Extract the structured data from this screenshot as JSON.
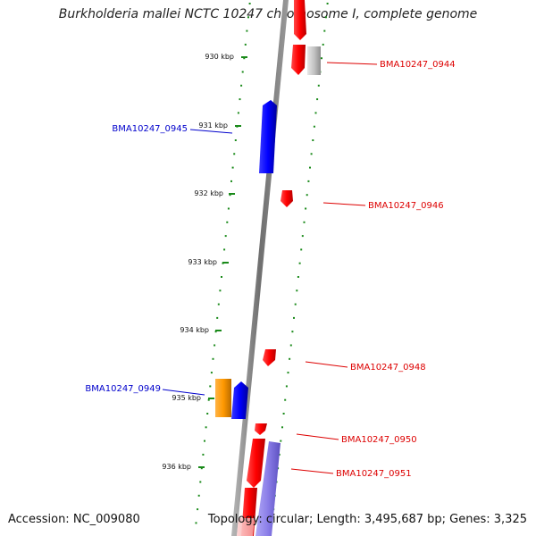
{
  "title": "Burkholderia mallei NCTC 10247 chromosome I, complete genome",
  "accession": "Accession: NC_009080",
  "topology": "Topology: circular; Length: 3,495,687 bp; Genes: 3,325",
  "colors": {
    "forward_gene": "#ff0000",
    "reverse_gene": "#0000ff",
    "pseudo_gene": "#bbbbbb",
    "orange_gene": "#ff9900",
    "lavender_gene": "#8a7de8",
    "kbp_ticks": "#1a8a1a",
    "forward_label": "#dd0000",
    "reverse_label": "#0000cc",
    "axis": "#8c8c8c"
  },
  "kbp_ticks": [
    "930 kbp",
    "931 kbp",
    "932 kbp",
    "933 kbp",
    "934 kbp",
    "935 kbp",
    "936 kbp"
  ],
  "gene_labels": {
    "g0944": "BMA10247_0944",
    "g0945": "BMA10247_0945",
    "g0946": "BMA10247_0946",
    "g0948": "BMA10247_0948",
    "g0949": "BMA10247_0949",
    "g0950": "BMA10247_0950",
    "g0951": "BMA10247_0951"
  }
}
